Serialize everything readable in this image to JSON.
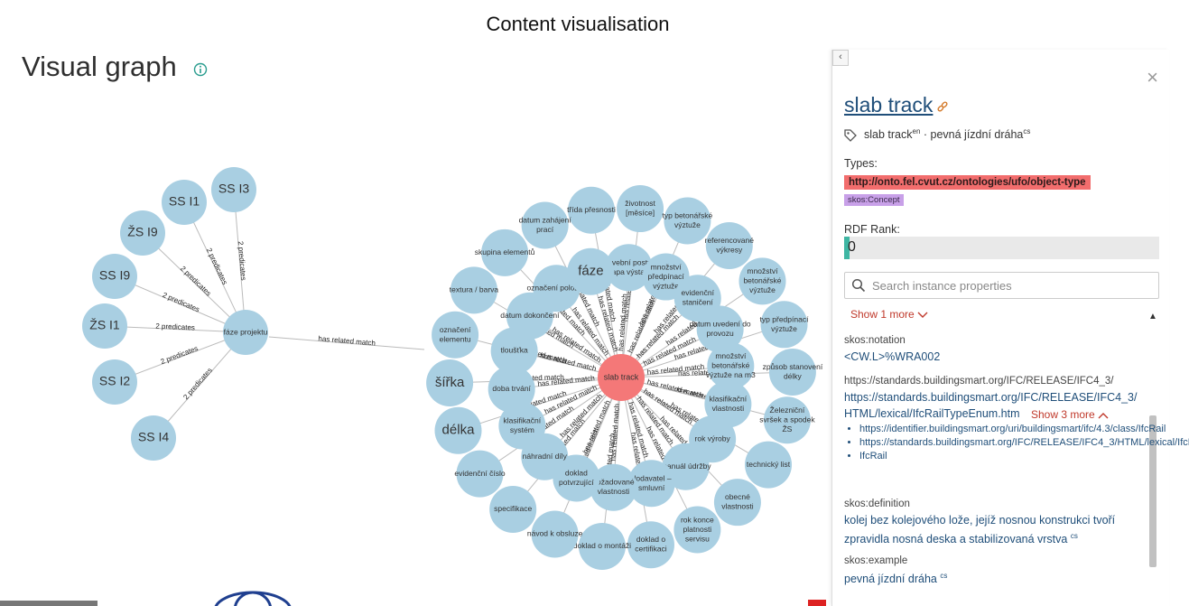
{
  "slide_title": "Content visualisation",
  "page_title": "Visual graph",
  "colors": {
    "node": "#a9cfe2",
    "center_node": "#f47878",
    "edge": "#bbbbbb",
    "type_badge": "#f26d6d",
    "concept_badge": "#c8a0e8",
    "rank_fill": "#3fb6a3"
  },
  "graph": {
    "left_center": "fáze projektu",
    "left_nodes": [
      "SS I3",
      "SS I1",
      "ŽS I9",
      "SS I9",
      "ŽS I1",
      "SS I2",
      "SS I4"
    ],
    "left_edge_label": "2 predicates",
    "center": "slab track",
    "bridge_label": "has related match",
    "ring_nodes": [
      {
        "label": "třída přesnosti",
        "big": false
      },
      {
        "label": "životnost [měsíce]",
        "big": false
      },
      {
        "label": "typ betonářské výztuže",
        "big": false
      },
      {
        "label": "referencované výkresy",
        "big": false
      },
      {
        "label": "množství betonářské výztuže",
        "big": false
      },
      {
        "label": "typ předpínací výztuže",
        "big": false
      },
      {
        "label": "způsob stanovení délky",
        "big": false
      },
      {
        "label": "Železniční svršek a spodek ŽS",
        "big": false
      },
      {
        "label": "technický list",
        "big": false
      },
      {
        "label": "obecné vlastnosti",
        "big": false
      },
      {
        "label": "rok konce platnosti servisu",
        "big": false
      },
      {
        "label": "doklad o certifikaci",
        "big": false
      },
      {
        "label": "doklad o montáži",
        "big": false
      },
      {
        "label": "návod k obsluze",
        "big": false
      },
      {
        "label": "specifikace",
        "big": false
      },
      {
        "label": "evidenční číslo",
        "big": false
      },
      {
        "label": "délka",
        "big": true
      },
      {
        "label": "šířka",
        "big": true
      },
      {
        "label": "označení elementu",
        "big": false
      },
      {
        "label": "textura / barva",
        "big": false
      },
      {
        "label": "skupina elementů",
        "big": false
      },
      {
        "label": "datum zahájení prací",
        "big": false
      }
    ],
    "inner_nodes": [
      {
        "label": "stavební postup / etapa výstavby",
        "big": false
      },
      {
        "label": "množství předpínací výztuže",
        "big": false
      },
      {
        "label": "evidenční staničení",
        "big": false
      },
      {
        "label": "datum uvedení do provozu",
        "big": false
      },
      {
        "label": "množství betonářské výztuže na m3",
        "big": false
      },
      {
        "label": "klasifikační vlastnosti",
        "big": false
      },
      {
        "label": "rok výroby",
        "big": false
      },
      {
        "label": "manuál údržby",
        "big": false
      },
      {
        "label": "dodavatel – smluvní",
        "big": false
      },
      {
        "label": "požadované vlastnosti",
        "big": false
      },
      {
        "label": "doklad potvrzující",
        "big": false
      },
      {
        "label": "náhradní díly",
        "big": false
      },
      {
        "label": "klasifikační systém",
        "big": false
      },
      {
        "label": "doba trvání",
        "big": false
      },
      {
        "label": "tloušťka",
        "big": false
      },
      {
        "label": "datum dokončení",
        "big": false
      },
      {
        "label": "označení položky",
        "big": false
      },
      {
        "label": "fáze",
        "big": true
      }
    ],
    "ring_edge_label": "has related match"
  },
  "panel": {
    "collapse_glyph": "‹",
    "close_glyph": "×",
    "title": "slab track",
    "label_en": "slab track",
    "label_en_lang": "en",
    "label_sep": " · ",
    "label_cs": "pevná jízdní dráha",
    "label_cs_lang": "cs",
    "types_label": "Types:",
    "type_primary": "http://onto.fel.cvut.cz/ontologies/ufo/object-type",
    "type_concept": "skos:Concept",
    "rdf_rank_label": "RDF Rank:",
    "rdf_rank_value": "0",
    "search_placeholder": "Search instance properties",
    "show_more_1": "Show 1 more",
    "notation_key": "skos:notation",
    "notation_value": "<CW.L>%WRA002",
    "ifc_key": "https://standards.buildingsmart.org/IFC/RELEASE/IFC4_3/",
    "ifc_value_line1": "https://standards.buildingsmart.org/IFC/RELEASE/IFC4_3/",
    "ifc_value_line2": "HTML/lexical/IfcRailTypeEnum.htm",
    "show_more_3": "Show 3 more",
    "ifc_sub_items": [
      "https://identifier.buildingsmart.org/uri/buildingsmart/ifc/4.3/class/IfcRail",
      "https://standards.buildingsmart.org/IFC/RELEASE/IFC4_3/HTML/lexical/IfcRail.htm",
      "IfcRail"
    ],
    "definition_key": "skos:definition",
    "definition_value": "kolej bez kolejového lože, jejíž nosnou konstrukci tvoří zpravidla nosná deska a stabilizovaná vrstva",
    "definition_lang": "cs",
    "example_key": "skos:example",
    "example_value": "pevná jízdní dráha",
    "example_lang": "cs"
  }
}
